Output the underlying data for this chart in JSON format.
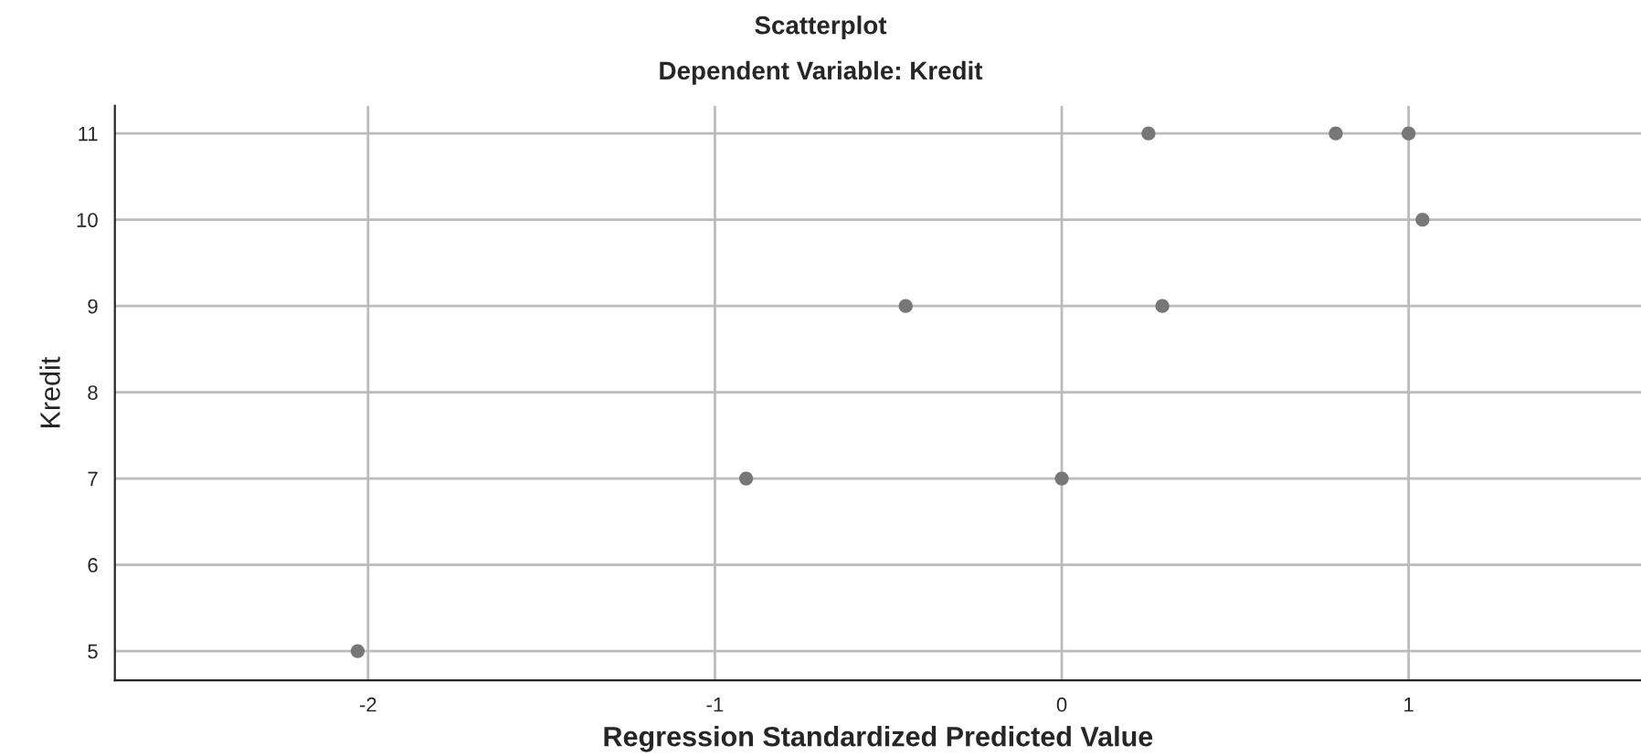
{
  "chart_data": {
    "type": "scatter",
    "title": "Scatterplot",
    "subtitle": "Dependent Variable: Kredit",
    "xlabel": "Regression Standardized Predicted Value",
    "ylabel": "Kredit",
    "x": [
      0.25,
      0.79,
      1.0,
      1.04,
      -0.45,
      0.29,
      -0.91,
      0.0,
      -2.03
    ],
    "series": [
      {
        "color": "#777777",
        "values": [
          11,
          11,
          11,
          10,
          9,
          9,
          7,
          7,
          5
        ]
      }
    ],
    "xlim": [
      -2.73,
      1.67
    ],
    "ylim": [
      4.66,
      11.32
    ],
    "xticks": [
      -2,
      -1,
      0,
      1
    ],
    "yticks": [
      5,
      6,
      7,
      8,
      9,
      10,
      11
    ],
    "grid": true,
    "marker": "circle"
  }
}
